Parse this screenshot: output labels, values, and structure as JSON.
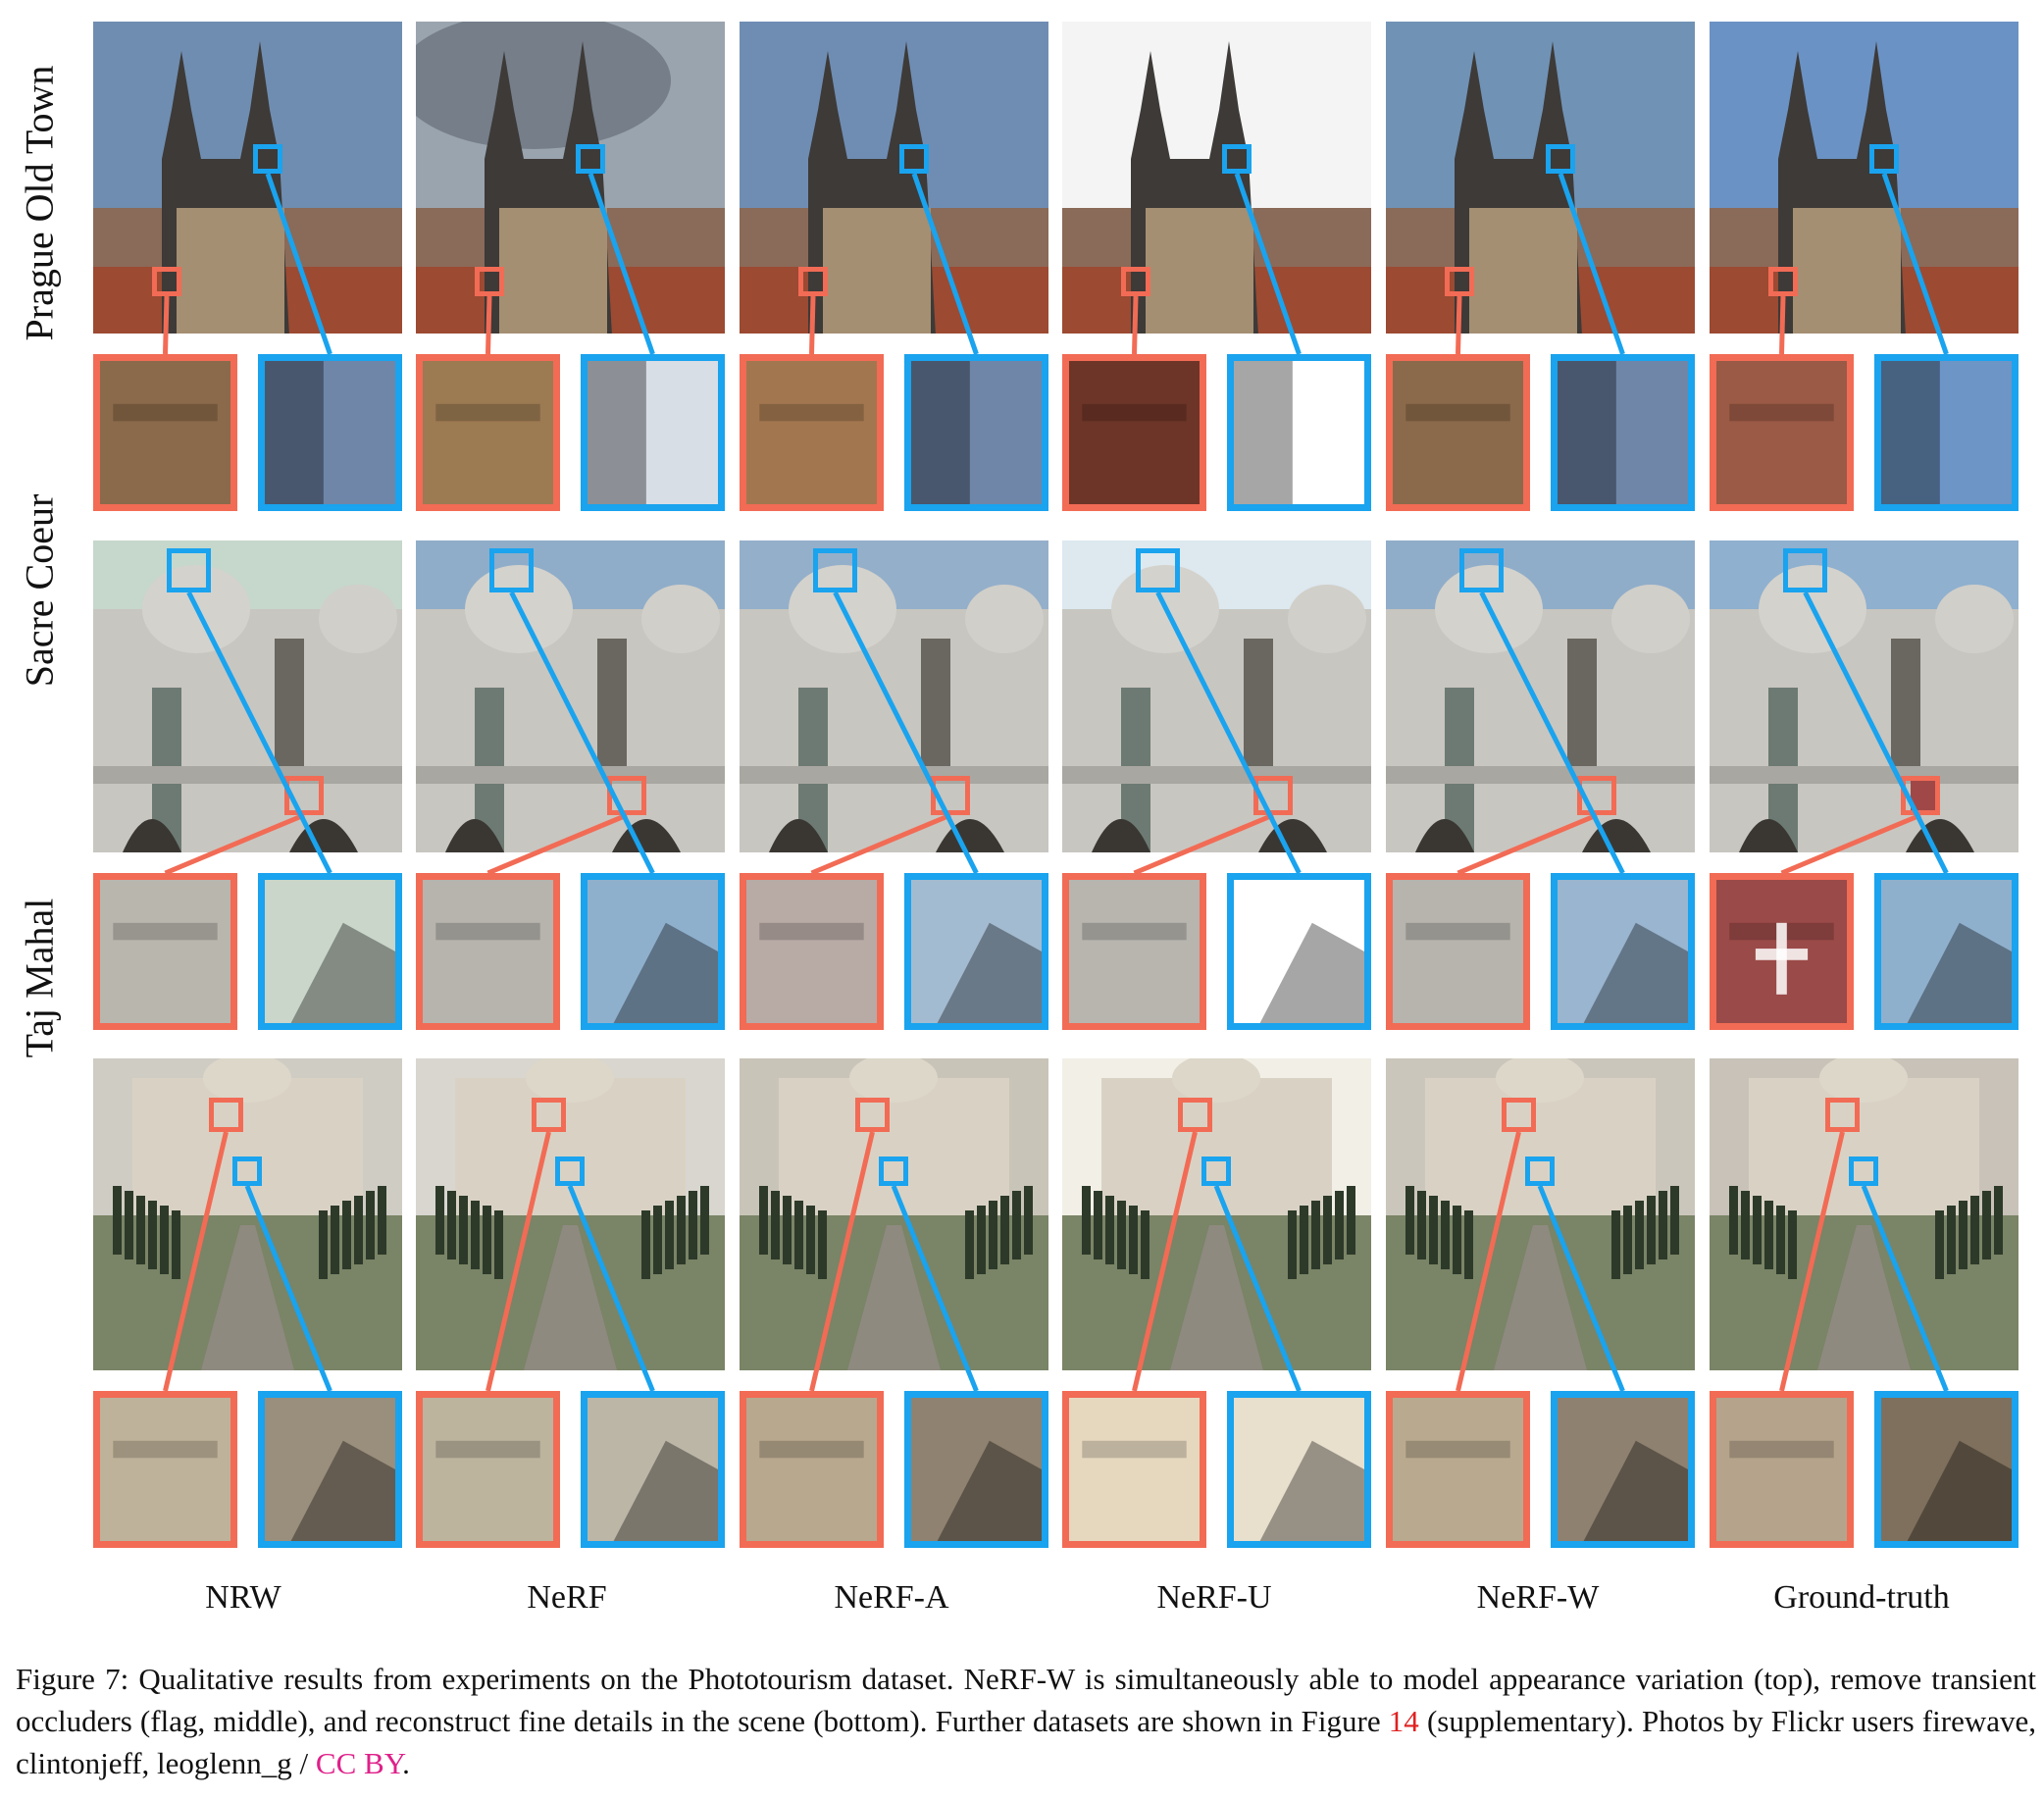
{
  "figure": {
    "row_labels": [
      "Prague Old Town",
      "Sacre Coeur",
      "Taj Mahal"
    ],
    "column_labels": [
      "NRW",
      "NeRF",
      "NeRF-A",
      "NeRF-U",
      "NeRF-W",
      "Ground-truth"
    ],
    "colors": {
      "red_inset": "#f26b55",
      "blue_inset": "#1aa3ee",
      "license_link": "#e0208a",
      "figure_ref": "#e02020"
    }
  },
  "caption": {
    "text_before_ref": "Figure 7: Qualitative results from experiments on the Phototourism dataset. NeRF-W is simultaneously able to model appearance variation (top), remove transient occluders (flag, middle), and reconstruct fine details in the scene (bottom). Further datasets are shown in Figure ",
    "ref": "14",
    "text_after_ref": " (supplementary). Photos by Flickr users firewave, clintonjeff, leoglenn_g / ",
    "license": "CC BY",
    "text_end": "."
  }
}
